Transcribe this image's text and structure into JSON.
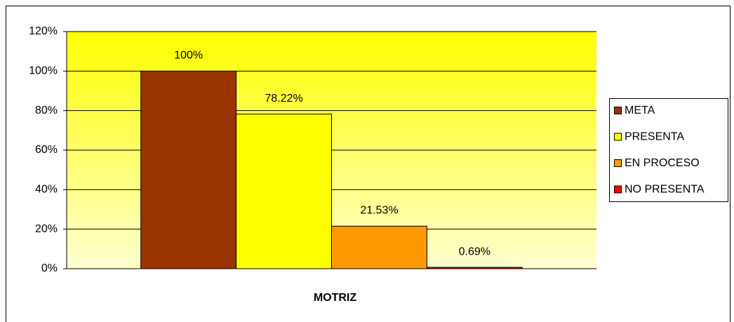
{
  "chart_data": {
    "type": "bar",
    "categories": [
      "MOTRIZ"
    ],
    "series": [
      {
        "name": "META",
        "color": "#993300",
        "values": [
          100
        ],
        "value_labels": [
          "100%"
        ]
      },
      {
        "name": "PRESENTA",
        "color": "#ffff00",
        "values": [
          78.22
        ],
        "value_labels": [
          "78.22%"
        ]
      },
      {
        "name": "EN PROCESO",
        "color": "#ff9900",
        "values": [
          21.53
        ],
        "value_labels": [
          "21.53%"
        ]
      },
      {
        "name": "NO PRESENTA",
        "color": "#ff0000",
        "values": [
          0.69
        ],
        "value_labels": [
          "0.69%"
        ]
      }
    ],
    "ylim": [
      0,
      120
    ],
    "yticks": [
      {
        "value": 0,
        "label": "0%"
      },
      {
        "value": 20,
        "label": "20%"
      },
      {
        "value": 40,
        "label": "40%"
      },
      {
        "value": 60,
        "label": "60%"
      },
      {
        "value": 80,
        "label": "80%"
      },
      {
        "value": 100,
        "label": "100%"
      },
      {
        "value": 120,
        "label": "120%"
      }
    ],
    "grid": true,
    "legend": "right"
  }
}
